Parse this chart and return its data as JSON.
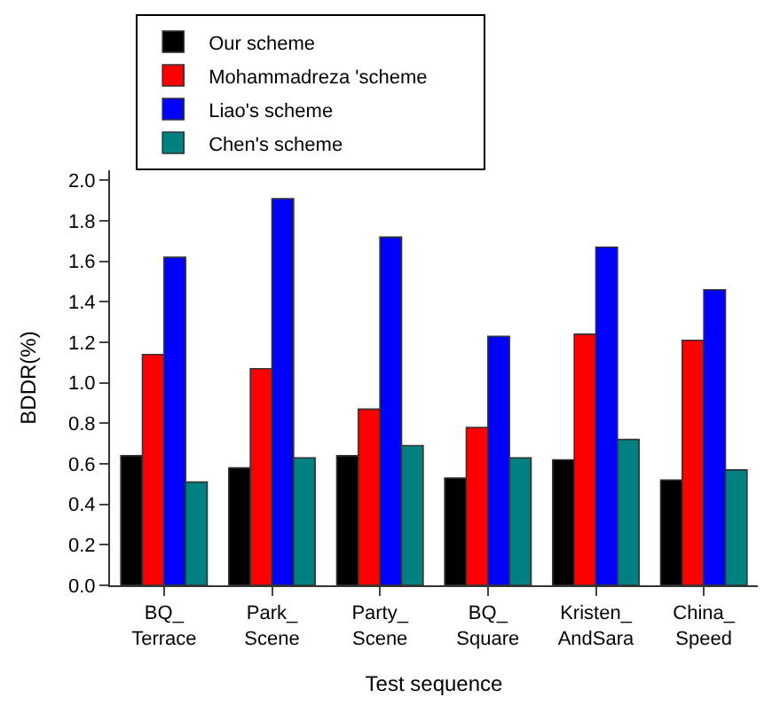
{
  "chart_data": {
    "type": "bar",
    "xlabel": "Test sequence",
    "ylabel": "BDDR(%)",
    "categories": [
      "BQ_\nTerrace",
      "Park_\nScene",
      "Party_\nScene",
      "BQ_\nSquare",
      "Kristen_\nAndSara",
      "China_\nSpeed"
    ],
    "series": [
      {
        "name": "Our scheme",
        "color": "#000000",
        "values": [
          0.64,
          0.58,
          0.64,
          0.53,
          0.62,
          0.52
        ]
      },
      {
        "name": "Mohammadreza 'scheme",
        "color": "#ff0000",
        "values": [
          1.14,
          1.07,
          0.87,
          0.78,
          1.24,
          1.21
        ]
      },
      {
        "name": "Liao's scheme",
        "color": "#0000ff",
        "values": [
          1.62,
          1.91,
          1.72,
          1.23,
          1.67,
          1.46
        ]
      },
      {
        "name": "Chen's scheme",
        "color": "#008080",
        "values": [
          0.51,
          0.63,
          0.69,
          0.63,
          0.72,
          0.57
        ]
      }
    ],
    "ylim": [
      0,
      2.05
    ],
    "yticks": [
      {
        "value": 0,
        "label": "0.0"
      },
      0.2,
      0.4,
      0.6,
      0.8,
      {
        "value": 1,
        "label": "1.0"
      },
      1.2,
      1.4,
      1.6,
      1.8,
      {
        "value": 2,
        "label": "2.0"
      }
    ],
    "legend": "top"
  }
}
